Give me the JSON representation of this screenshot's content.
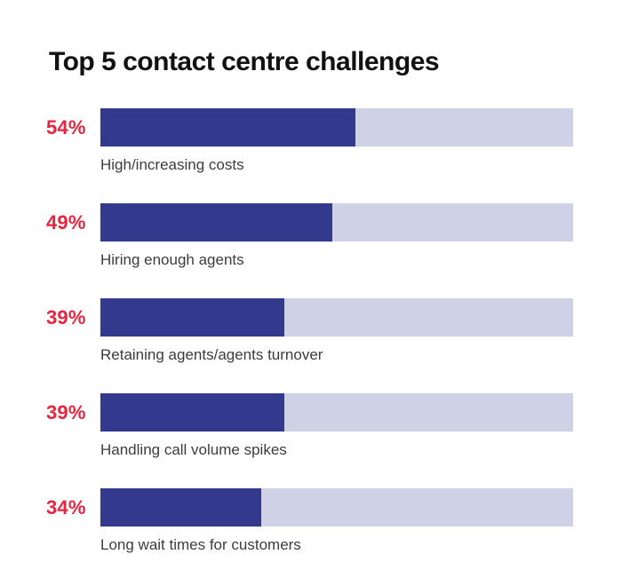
{
  "title": "Top 5 contact centre challenges",
  "colors": {
    "bar_fill": "#333A8E",
    "bar_track": "#CFD1E6",
    "percent_text": "#E9243F",
    "title_text": "#111111",
    "label_text": "#3C3C3C",
    "background": "#FFFFFF"
  },
  "chart_data": {
    "type": "bar",
    "orientation": "horizontal",
    "title": "Top 5 contact centre challenges",
    "categories": [
      "High/increasing costs",
      "Hiring enough agents",
      "Retaining agents/agents turnover",
      "Handling call volume spikes",
      "Long wait times for customers"
    ],
    "values": [
      54,
      49,
      39,
      39,
      34
    ],
    "value_labels": [
      "54%",
      "49%",
      "39%",
      "39%",
      "34%"
    ],
    "xlim": [
      0,
      100
    ],
    "grid": false,
    "legend": false,
    "rows": [
      {
        "percent": 54,
        "percent_label": "54%",
        "label": "High/increasing costs"
      },
      {
        "percent": 49,
        "percent_label": "49%",
        "label": "Hiring enough agents"
      },
      {
        "percent": 39,
        "percent_label": "39%",
        "label": "Retaining agents/agents turnover"
      },
      {
        "percent": 39,
        "percent_label": "39%",
        "label": "Handling call volume spikes"
      },
      {
        "percent": 34,
        "percent_label": "34%",
        "label": "Long wait times for customers"
      }
    ]
  }
}
